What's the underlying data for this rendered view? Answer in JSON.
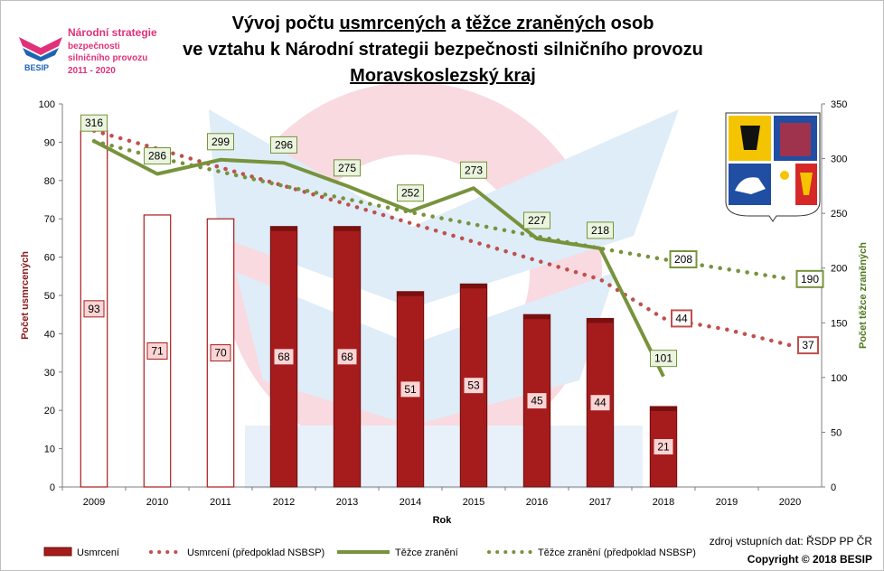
{
  "logo": {
    "line1": "Národní strategie",
    "line2": "bezpečnosti",
    "line3": "silničního provozu",
    "line4": "2011 - 2020",
    "brand": "BESIP"
  },
  "title": {
    "line1_part1": "Vývoj počtu ",
    "line1_underlined1": "usmrcených",
    "line1_part2": " a ",
    "line1_underlined2": "těžce zraněných",
    "line1_part3": " osob",
    "line2": "ve vztahu k Národní strategii bezpečnosti silničního provozu",
    "line3": "Moravskoslezský kraj"
  },
  "source": "zdroj vstupních dat: ŘSDP PP ČR",
  "copyright": "Copyright © 2018  BESIP",
  "chart_data": {
    "type": "bar",
    "categories": [
      "2009",
      "2010",
      "2011",
      "2012",
      "2013",
      "2014",
      "2015",
      "2016",
      "2017",
      "2018",
      "2019",
      "2020"
    ],
    "xlabel": "Rok",
    "ylabel": "Počet usmrcených",
    "y2label": "Počet těžce zraněných",
    "ylim": [
      0,
      100
    ],
    "y2lim": [
      0,
      350
    ],
    "yticks": [
      "0",
      "10",
      "20",
      "30",
      "40",
      "50",
      "60",
      "70",
      "80",
      "90",
      "100"
    ],
    "y2ticks": [
      "0",
      "50",
      "100",
      "150",
      "200",
      "250",
      "300",
      "350"
    ],
    "grid": false,
    "legend_position": "bottom",
    "series": [
      {
        "name": "Usmrcení",
        "kind": "bar",
        "axis": "left",
        "color": "#a61c1c",
        "hollow_color": "#ffffff",
        "values": [
          93,
          71,
          70,
          68,
          68,
          51,
          53,
          45,
          44,
          21,
          null,
          null
        ],
        "hollow": [
          true,
          true,
          true,
          false,
          false,
          false,
          false,
          false,
          false,
          false,
          false,
          false
        ],
        "labels": [
          "93",
          "71",
          "70",
          "68",
          "68",
          "51",
          "53",
          "45",
          "44",
          "21",
          "",
          ""
        ]
      },
      {
        "name": "Usmrcení (předpoklad NSBSP)",
        "kind": "dotted",
        "axis": "left",
        "color": "#c0504d",
        "values": [
          93,
          88.3,
          83.4,
          78.6,
          73.8,
          68.9,
          64.0,
          59.1,
          54.2,
          44,
          41.1,
          37
        ],
        "labels": [
          "",
          "",
          "",
          "",
          "",
          "",
          "",
          "",
          "",
          "44",
          "",
          "37"
        ]
      },
      {
        "name": "Těžce zranění",
        "kind": "line",
        "axis": "right",
        "color": "#77933c",
        "values": [
          316,
          286,
          299,
          296,
          275,
          252,
          273,
          227,
          218,
          101,
          null,
          null
        ],
        "labels": [
          "316",
          "286",
          "299",
          "296",
          "275",
          "252",
          "273",
          "227",
          "218",
          "101",
          "",
          ""
        ]
      },
      {
        "name": "Těžce zranění (předpoklad NSBSP)",
        "kind": "dotted",
        "axis": "right",
        "color": "#77933c",
        "values": [
          316,
          301,
          288,
          275,
          263,
          251,
          240,
          229,
          218,
          208,
          199,
          190
        ],
        "labels": [
          "",
          "",
          "",
          "",
          "",
          "",
          "",
          "",
          "",
          "208",
          "",
          "190"
        ]
      }
    ]
  }
}
